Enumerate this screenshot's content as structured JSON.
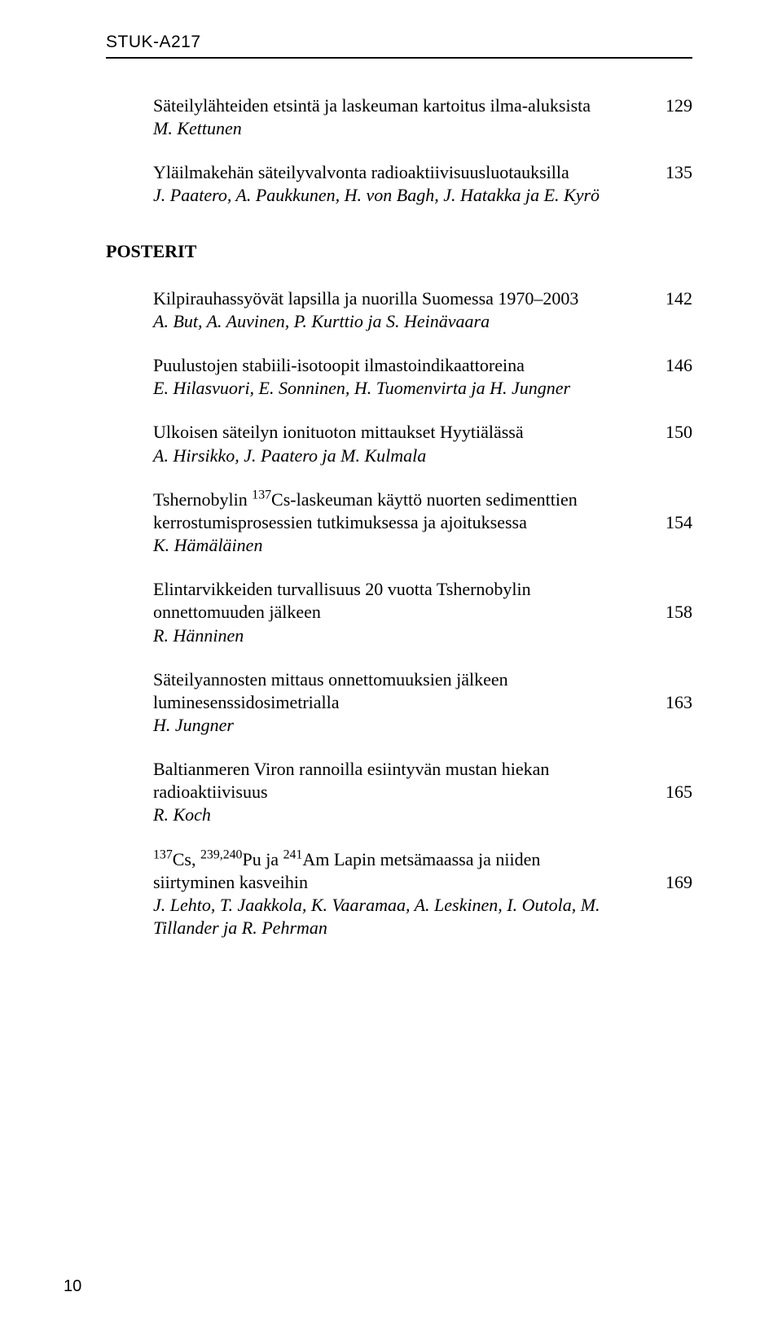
{
  "report_id": "STUK-A217",
  "section_head": "POSTERIT",
  "foot_page": "10",
  "entries_top": [
    {
      "title": "Säteilylähteiden etsintä ja laskeuman kartoitus ilma-aluksista",
      "authors": "M. Kettunen",
      "page": "129"
    },
    {
      "title": "Yläilmakehän säteilyvalvonta radioaktiivisuusluotauksilla",
      "authors": "J. Paatero, A. Paukkunen, H. von Bagh, J. Hatakka ja E. Kyrö",
      "page": "135"
    }
  ],
  "entries_poster": [
    {
      "title": "Kilpirauhassyövät lapsilla ja nuorilla Suomessa 1970–2003",
      "authors": "A. But, A. Auvinen, P. Kurttio ja S. Heinävaara",
      "page": "142"
    },
    {
      "title": "Puulustojen stabiili-isotoopit ilmastoindikaattoreina",
      "authors": "E. Hilasvuori, E. Sonninen, H. Tuomenvirta ja H. Jungner",
      "page": "146"
    },
    {
      "title": "Ulkoisen säteilyn ionituoton mittaukset Hyytiälässä",
      "authors": "A. Hirsikko, J. Paatero ja M. Kulmala",
      "page": "150"
    },
    {
      "title_html": "Tshernobylin <sup>137</sup>Cs-laskeuman käyttö nuorten sedimenttien kerrostumisprosessien tutkimuksessa ja ajoituksessa",
      "authors": "K. Hämäläinen",
      "page": "154",
      "page_align_line": 2
    },
    {
      "title": "Elintarvikkeiden turvallisuus 20 vuotta Tshernobylin onnettomuuden jälkeen",
      "authors": "R. Hänninen",
      "page": "158",
      "page_align_line": 2
    },
    {
      "title": "Säteilyannosten mittaus onnettomuuksien jälkeen luminesenssidosimetrialla",
      "authors": "H. Jungner",
      "page": "163",
      "page_align_line": 2
    },
    {
      "title": "Baltianmeren Viron rannoilla esiintyvän mustan hiekan radioaktiivisuus",
      "authors": "R. Koch",
      "page": "165",
      "page_align_line": 2
    },
    {
      "title_html": "<sup>137</sup>Cs, <sup>239,240</sup>Pu ja <sup>241</sup>Am Lapin metsämaassa ja niiden siirtyminen kasveihin",
      "authors": "J. Lehto, T. Jaakkola, K. Vaaramaa, A. Leskinen, I. Outola, M. Tillander ja R. Pehrman",
      "page": "169",
      "page_align_line": 2
    }
  ]
}
